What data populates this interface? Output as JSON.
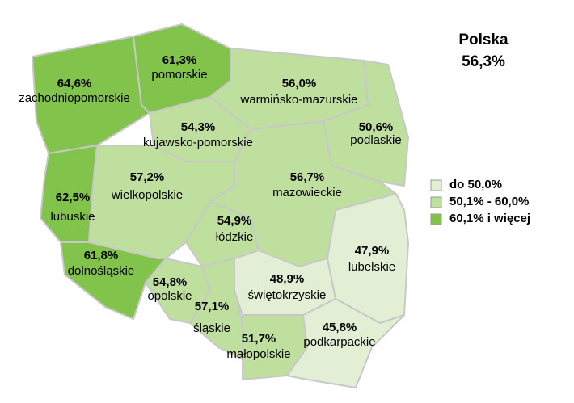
{
  "title": "Polska",
  "national": {
    "value": 56.3,
    "label": "56,3%"
  },
  "legend": [
    {
      "label": "do 50,0%",
      "color": "#e2efd4"
    },
    {
      "label": "50,1% - 60,0%",
      "color": "#bfdf9f"
    },
    {
      "label": "60,1% i więcej",
      "color": "#82c34c"
    }
  ],
  "regions": [
    {
      "name": "zachodniopomorskie",
      "value": 64.6,
      "value_label": "64,6%",
      "color": "#82c34c"
    },
    {
      "name": "pomorskie",
      "value": 61.3,
      "value_label": "61,3%",
      "color": "#82c34c"
    },
    {
      "name": "warmińsko-mazurskie",
      "value": 56.0,
      "value_label": "56,0%",
      "color": "#bfdf9f"
    },
    {
      "name": "podlaskie",
      "value": 50.6,
      "value_label": "50,6%",
      "color": "#bfdf9f"
    },
    {
      "name": "kujawsko-pomorskie",
      "value": 54.3,
      "value_label": "54,3%",
      "color": "#bfdf9f"
    },
    {
      "name": "lubuskie",
      "value": 62.5,
      "value_label": "62,5%",
      "color": "#82c34c"
    },
    {
      "name": "wielkopolskie",
      "value": 57.2,
      "value_label": "57,2%",
      "color": "#bfdf9f"
    },
    {
      "name": "mazowieckie",
      "value": 56.7,
      "value_label": "56,7%",
      "color": "#bfdf9f"
    },
    {
      "name": "łódzkie",
      "value": 54.9,
      "value_label": "54,9%",
      "color": "#bfdf9f"
    },
    {
      "name": "dolnośląskie",
      "value": 61.8,
      "value_label": "61,8%",
      "color": "#82c34c"
    },
    {
      "name": "opolskie",
      "value": 54.8,
      "value_label": "54,8%",
      "color": "#bfdf9f"
    },
    {
      "name": "śląskie",
      "value": 57.1,
      "value_label": "57,1%",
      "color": "#bfdf9f"
    },
    {
      "name": "świętokrzyskie",
      "value": 48.9,
      "value_label": "48,9%",
      "color": "#e2efd4"
    },
    {
      "name": "lubelskie",
      "value": 47.9,
      "value_label": "47,9%",
      "color": "#e2efd4"
    },
    {
      "name": "małopolskie",
      "value": 51.7,
      "value_label": "51,7%",
      "color": "#bfdf9f"
    },
    {
      "name": "podkarpackie",
      "value": 45.8,
      "value_label": "45,8%",
      "color": "#e2efd4"
    }
  ]
}
